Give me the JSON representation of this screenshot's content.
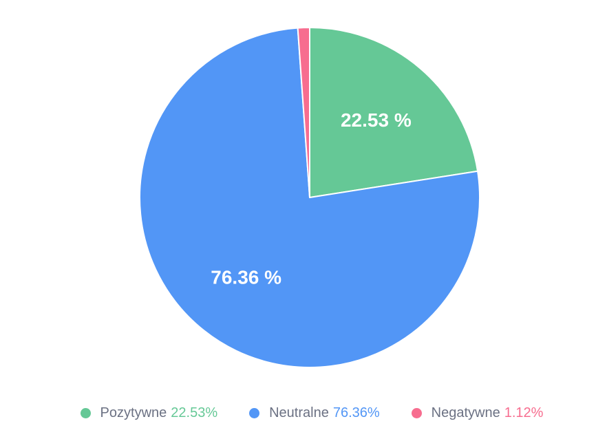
{
  "chart_data": {
    "type": "pie",
    "title": "",
    "categories": [
      "Pozytywne",
      "Neutralne",
      "Negatywne"
    ],
    "values": [
      22.53,
      76.36,
      1.12
    ],
    "slices": [
      {
        "label": "Pozytywne",
        "value": 22.53,
        "slice_label": "22.53 %",
        "legend_value": "22.53%",
        "color": "#65c896",
        "show_slice_label": true
      },
      {
        "label": "Neutralne",
        "value": 76.36,
        "slice_label": "76.36 %",
        "legend_value": "76.36%",
        "color": "#5296f6",
        "show_slice_label": true
      },
      {
        "label": "Negatywne",
        "value": 1.12,
        "slice_label": "",
        "legend_value": "1.12%",
        "color": "#f76d8f",
        "show_slice_label": false
      }
    ],
    "start_angle_deg": 0,
    "direction": "clockwise",
    "legend_position": "bottom",
    "slice_label_color": "#ffffff",
    "slice_border_color": "#ffffff",
    "legend_text_color": "#6b7183",
    "background": "#ffffff"
  }
}
